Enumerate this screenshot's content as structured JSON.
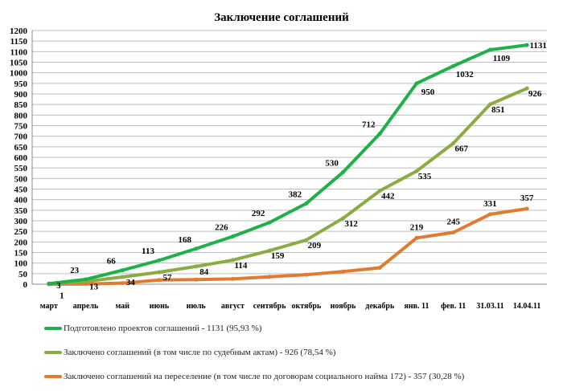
{
  "chart_data": {
    "type": "line",
    "title": "Заключение соглашений",
    "categories": [
      "март",
      "апрель",
      "май",
      "июнь",
      "июль",
      "август",
      "сентябрь",
      "октябрь",
      "ноябрь",
      "декабрь",
      "янв. 11",
      "фев. 11",
      "31.03.11",
      "14.04.11"
    ],
    "ylim": [
      0,
      1200
    ],
    "ytick_step": 50,
    "grid": true,
    "legend_position": "bottom",
    "series": [
      {
        "name": "Подготовлено проектов соглашений - 1131 (95,93 %)",
        "color": "#1fb04a",
        "values": [
          3,
          23,
          66,
          113,
          168,
          226,
          292,
          382,
          530,
          712,
          950,
          1032,
          1109,
          1131
        ],
        "labels": true
      },
      {
        "name": "Заключено соглашений (в том числе по судебным актам) - 926 (78,54 %)",
        "color": "#8aac43",
        "values": [
          1,
          13,
          34,
          57,
          84,
          114,
          159,
          209,
          312,
          442,
          535,
          667,
          851,
          926
        ],
        "labels": true
      },
      {
        "name": "Заключено соглашений на переселение (в том числе по договорам социального найма 172) - 357 (30,28 %)",
        "color": "#e07b30",
        "values": [
          0,
          1,
          5,
          20,
          22,
          25,
          35,
          45,
          60,
          78,
          219,
          245,
          331,
          357
        ],
        "labels": [
          false,
          false,
          false,
          false,
          false,
          false,
          false,
          false,
          false,
          false,
          true,
          true,
          true,
          true
        ]
      }
    ]
  }
}
